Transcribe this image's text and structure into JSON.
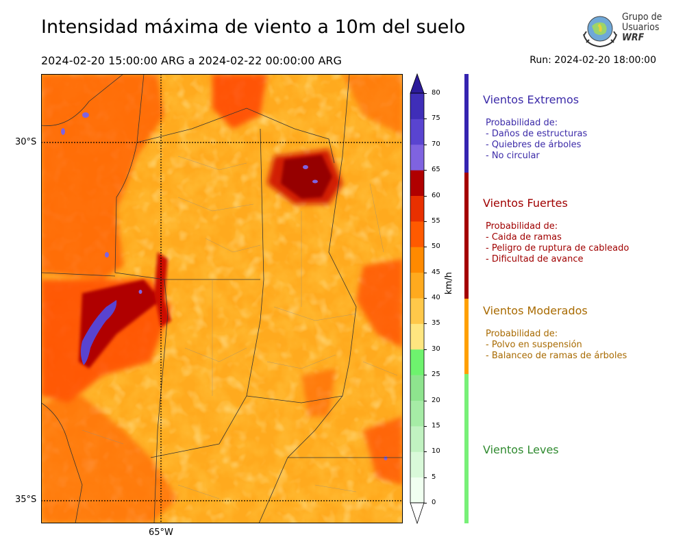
{
  "title": "Intensidad máxima de viento a 10m del suelo",
  "period": "2024-02-20 15:00:00 ARG  a  2024-02-22 00:00:00 ARG",
  "run": "Run: 2024-02-20 18:00:00",
  "logo": {
    "line1": "Grupo de",
    "line2": "Usuarios",
    "line3": "WRF"
  },
  "map": {
    "lat_labels": [
      "30°S",
      "35°S"
    ],
    "lon_labels": [
      "65°W"
    ]
  },
  "colorbar": {
    "unit": "km/h",
    "ticks": [
      "0",
      "5",
      "10",
      "15",
      "20",
      "25",
      "30",
      "35",
      "40",
      "45",
      "50",
      "55",
      "60",
      "65",
      "70",
      "75",
      "80"
    ],
    "colors": [
      "#f0fff0",
      "#d9f9d9",
      "#c1f2c1",
      "#a6eca6",
      "#8ee48e",
      "#6ef36e",
      "#ffe680",
      "#ffc84a",
      "#ffaa1e",
      "#ff8a00",
      "#ff5a00",
      "#e83000",
      "#cc1100",
      "#b00000",
      "#960000",
      "#7f63e0",
      "#5944d0",
      "#3f2eb8",
      "#2c1b9a"
    ]
  },
  "categories": [
    {
      "name": "Vientos Extremos",
      "color": "#3b2aa8",
      "bar_color": "#3524b0",
      "lines": [
        "Probabilidad de:",
        "- Daños de estructuras",
        "- Quiebres de árboles",
        "- No circular"
      ]
    },
    {
      "name": "Vientos Fuertes",
      "color": "#a00000",
      "bar_color": "#a40000",
      "lines": [
        "Probabilidad de:",
        "- Caida de ramas",
        "- Peligro de ruptura de cableado",
        "- Dificultad de avance"
      ]
    },
    {
      "name": "Vientos Moderados",
      "color": "#a86a00",
      "bar_color": "#ffa000",
      "lines": [
        "Probabilidad de:",
        "- Polvo en suspensión",
        "- Balanceo de ramas de árboles"
      ]
    },
    {
      "name": "Vientos Leves",
      "color": "#2f8a2f",
      "bar_color": "#78f078",
      "lines": []
    }
  ]
}
